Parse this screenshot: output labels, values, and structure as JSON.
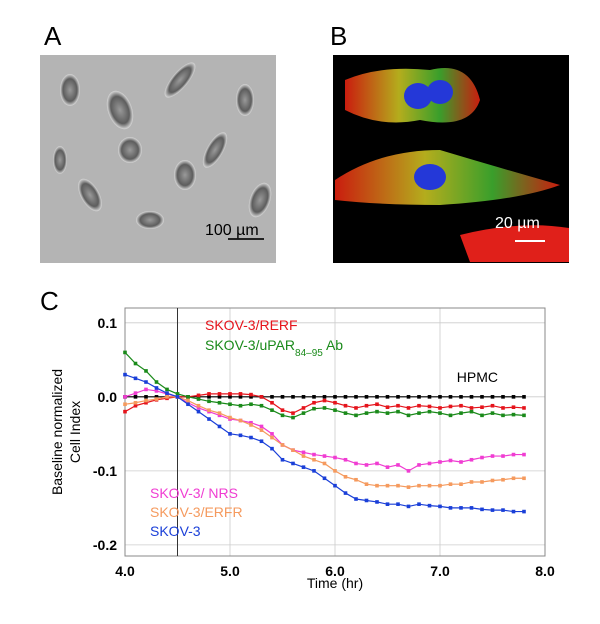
{
  "panels": {
    "a": {
      "label": "A",
      "scale_bar": "100 µm"
    },
    "b": {
      "label": "B",
      "scale_bar": "20 µm"
    },
    "c": {
      "label": "C"
    }
  },
  "chart_data": {
    "type": "line",
    "x_label": "Time (hr)",
    "y_label": [
      "Baseline normalized",
      "Cell Index"
    ],
    "xlim": [
      4,
      8
    ],
    "ylim": [
      -0.215,
      0.12
    ],
    "xticks": [
      {
        "value": 4,
        "label": "4.0"
      },
      {
        "value": 5,
        "label": "5.0"
      },
      {
        "value": 6,
        "label": "6.0"
      },
      {
        "value": 7,
        "label": "7.0"
      },
      {
        "value": 8,
        "label": "8.0"
      }
    ],
    "yticks": [
      0.1,
      {
        "value": 0,
        "label": "0.0"
      },
      -0.1,
      -0.2
    ],
    "grid": true,
    "vline": 4.5,
    "x": [
      4.0,
      4.1,
      4.2,
      4.3,
      4.4,
      4.5,
      4.6,
      4.7,
      4.8,
      4.9,
      5.0,
      5.1,
      5.2,
      5.3,
      5.4,
      5.5,
      5.6,
      5.7,
      5.8,
      5.9,
      6.0,
      6.1,
      6.2,
      6.3,
      6.4,
      6.5,
      6.6,
      6.7,
      6.8,
      6.9,
      7.0,
      7.1,
      7.2,
      7.3,
      7.4,
      7.5,
      7.6,
      7.7,
      7.8
    ],
    "series": [
      {
        "name": "HPMC",
        "color": "#000000",
        "values": [
          0,
          0,
          0,
          0,
          0,
          0,
          0,
          0,
          0,
          0,
          0,
          0,
          0,
          0,
          0,
          0,
          0,
          0,
          0,
          0,
          0,
          0,
          0,
          0,
          0,
          0,
          0,
          0,
          0,
          0,
          0,
          0,
          0,
          0,
          0,
          0,
          0,
          0,
          0
        ]
      },
      {
        "name": "SKOV-3/RERF",
        "color": "#e5141c",
        "values": [
          -0.02,
          -0.012,
          -0.008,
          -0.004,
          -0.002,
          0.0,
          0.0,
          0.002,
          0.004,
          0.004,
          0.004,
          0.004,
          0.003,
          0.0,
          -0.008,
          -0.018,
          -0.022,
          -0.015,
          -0.008,
          -0.005,
          -0.008,
          -0.012,
          -0.015,
          -0.012,
          -0.01,
          -0.014,
          -0.012,
          -0.015,
          -0.012,
          -0.013,
          -0.015,
          -0.013,
          -0.012,
          -0.015,
          -0.014,
          -0.012,
          -0.015,
          -0.014,
          -0.015
        ]
      },
      {
        "name": "SKOV-3/uPAR84–95 Ab",
        "color": "#1a8a1a",
        "values": [
          0.06,
          0.045,
          0.035,
          0.02,
          0.01,
          0.004,
          0.0,
          -0.003,
          -0.006,
          -0.008,
          -0.01,
          -0.012,
          -0.01,
          -0.012,
          -0.018,
          -0.025,
          -0.028,
          -0.022,
          -0.016,
          -0.015,
          -0.018,
          -0.022,
          -0.025,
          -0.022,
          -0.02,
          -0.022,
          -0.02,
          -0.025,
          -0.022,
          -0.02,
          -0.022,
          -0.025,
          -0.022,
          -0.02,
          -0.025,
          -0.022,
          -0.025,
          -0.024,
          -0.025
        ]
      },
      {
        "name": "SKOV-3/ NRS",
        "color": "#f03cd2",
        "values": [
          0.0,
          0.005,
          0.01,
          0.008,
          0.004,
          0.0,
          -0.008,
          -0.015,
          -0.02,
          -0.025,
          -0.03,
          -0.032,
          -0.035,
          -0.04,
          -0.05,
          -0.065,
          -0.072,
          -0.075,
          -0.078,
          -0.08,
          -0.082,
          -0.085,
          -0.09,
          -0.092,
          -0.09,
          -0.095,
          -0.092,
          -0.1,
          -0.092,
          -0.09,
          -0.088,
          -0.086,
          -0.088,
          -0.085,
          -0.082,
          -0.08,
          -0.08,
          -0.078,
          -0.078
        ]
      },
      {
        "name": "SKOV-3/ERFR",
        "color": "#f59a5e",
        "values": [
          -0.01,
          -0.008,
          -0.005,
          -0.003,
          0.0,
          0.0,
          -0.005,
          -0.012,
          -0.018,
          -0.022,
          -0.028,
          -0.032,
          -0.038,
          -0.045,
          -0.055,
          -0.065,
          -0.072,
          -0.08,
          -0.085,
          -0.09,
          -0.1,
          -0.108,
          -0.112,
          -0.118,
          -0.12,
          -0.12,
          -0.12,
          -0.122,
          -0.12,
          -0.12,
          -0.12,
          -0.118,
          -0.118,
          -0.115,
          -0.115,
          -0.113,
          -0.112,
          -0.11,
          -0.11
        ]
      },
      {
        "name": "SKOV-3",
        "color": "#1a3fd8",
        "values": [
          0.03,
          0.025,
          0.02,
          0.012,
          0.005,
          0.0,
          -0.01,
          -0.02,
          -0.03,
          -0.04,
          -0.05,
          -0.052,
          -0.055,
          -0.06,
          -0.07,
          -0.085,
          -0.09,
          -0.095,
          -0.1,
          -0.11,
          -0.12,
          -0.13,
          -0.138,
          -0.14,
          -0.142,
          -0.145,
          -0.145,
          -0.148,
          -0.145,
          -0.147,
          -0.148,
          -0.15,
          -0.15,
          -0.15,
          -0.152,
          -0.153,
          -0.153,
          -0.155,
          -0.155
        ]
      }
    ]
  }
}
